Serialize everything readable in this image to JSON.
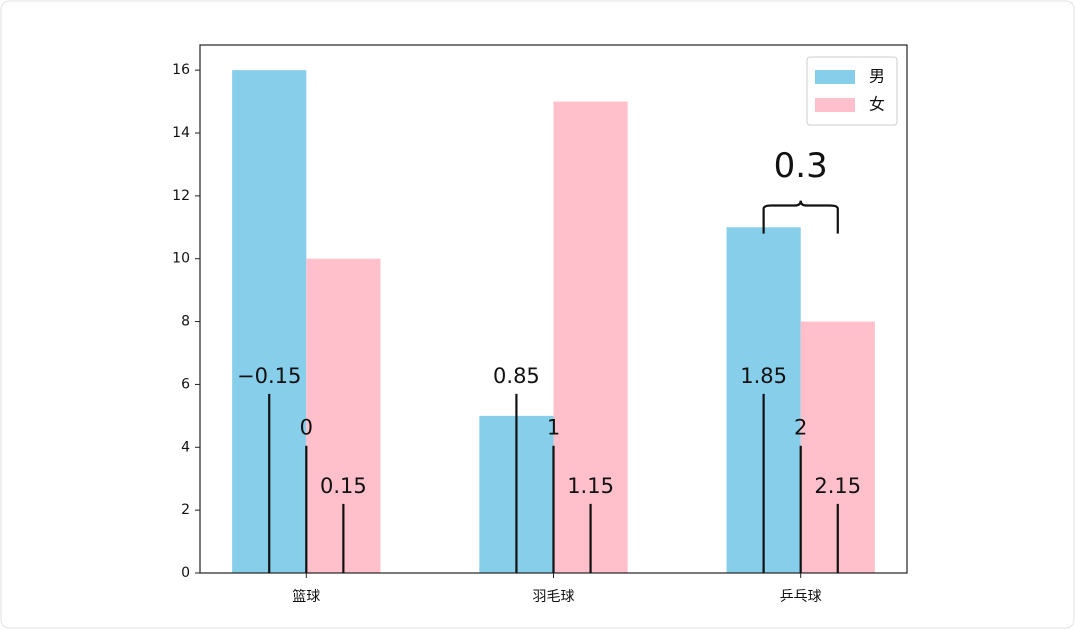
{
  "chart_data": {
    "type": "bar",
    "categories": [
      "篮球",
      "羽毛球",
      "乒乓球"
    ],
    "series": [
      {
        "name": "男",
        "color": "#87ceeb",
        "values": [
          16,
          5,
          11
        ],
        "offset": -0.15
      },
      {
        "name": "女",
        "color": "#ffc0cb",
        "values": [
          10,
          15,
          8
        ],
        "offset": 0.15
      }
    ],
    "bar_width": 0.3,
    "xlim": [
      -0.43,
      2.43
    ],
    "ylim": [
      0,
      16.8
    ],
    "yticks": [
      0,
      2,
      4,
      6,
      8,
      10,
      12,
      14,
      16
    ],
    "legend": "upper-right",
    "markers": [
      {
        "x": {
          "value": -0.15,
          "label": "−0.15"
        },
        "height": 5.7
      },
      {
        "x": 0,
        "height": 4.05
      },
      {
        "x": 0.15,
        "height": 2.2
      },
      {
        "x": 0.85,
        "height": 5.7
      },
      {
        "x": 1,
        "height": 4.05
      },
      {
        "x": 1.15,
        "height": 2.2
      },
      {
        "x": 1.85,
        "height": 5.7
      },
      {
        "x": 2,
        "height": 4.05
      },
      {
        "x": 2.15,
        "height": 2.2
      }
    ],
    "brace": {
      "start": 1.85,
      "width": 0.3,
      "y": 10.8
    }
  }
}
